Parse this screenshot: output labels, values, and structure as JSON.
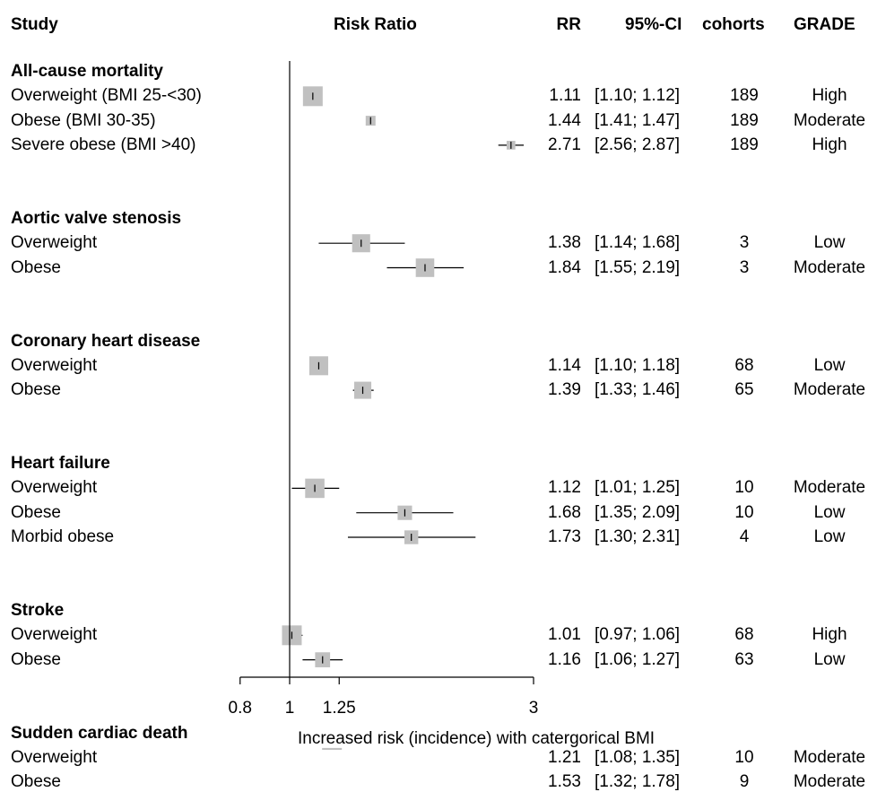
{
  "headers": {
    "study": "Study",
    "plot": "Risk Ratio",
    "rr": "RR",
    "ci": "95%-CI",
    "cohorts": "cohorts",
    "grade": "GRADE"
  },
  "chart_data": {
    "type": "forest",
    "xscale": "log",
    "xlim": [
      0.8,
      3
    ],
    "xticks": [
      "0.8",
      "1",
      "1.25",
      "3"
    ],
    "xlabel": "Increased risk (incidence) with catergorical BMI",
    "reference_line": 1,
    "groups": [
      {
        "name": "All-cause mortality",
        "rows": [
          {
            "label": "Overweight (BMI 25-<30)",
            "rr": 1.11,
            "lo": 1.1,
            "hi": 1.12,
            "rr_text": "1.11",
            "ci_text": "[1.10; 1.12]",
            "cohorts": "189",
            "grade": "High",
            "weight": 1.0
          },
          {
            "label": "Obese (BMI 30-35)",
            "rr": 1.44,
            "lo": 1.41,
            "hi": 1.47,
            "rr_text": "1.44",
            "ci_text": "[1.41; 1.47]",
            "cohorts": "189",
            "grade": "Moderate",
            "weight": 0.15
          },
          {
            "label": "Severe obese (BMI >40)",
            "rr": 2.71,
            "lo": 2.56,
            "hi": 2.87,
            "rr_text": "2.71",
            "ci_text": "[2.56; 2.87]",
            "cohorts": "189",
            "grade": "High",
            "weight": 0.1
          }
        ]
      },
      {
        "name": "Aortic valve stenosis",
        "rows": [
          {
            "label": "Overweight",
            "rr": 1.38,
            "lo": 1.14,
            "hi": 1.68,
            "rr_text": "1.38",
            "ci_text": "[1.14; 1.68]",
            "cohorts": "3",
            "grade": "Low",
            "weight": 0.8
          },
          {
            "label": "Obese",
            "rr": 1.84,
            "lo": 1.55,
            "hi": 2.19,
            "rr_text": "1.84",
            "ci_text": "[1.55; 2.19]",
            "cohorts": "3",
            "grade": "Moderate",
            "weight": 0.85
          }
        ]
      },
      {
        "name": "Coronary heart disease",
        "rows": [
          {
            "label": "Overweight",
            "rr": 1.14,
            "lo": 1.1,
            "hi": 1.18,
            "rr_text": "1.14",
            "ci_text": "[1.10; 1.18]",
            "cohorts": "68",
            "grade": "Low",
            "weight": 0.9
          },
          {
            "label": "Obese",
            "rr": 1.39,
            "lo": 1.33,
            "hi": 1.46,
            "rr_text": "1.39",
            "ci_text": "[1.33; 1.46]",
            "cohorts": "65",
            "grade": "Moderate",
            "weight": 0.7
          }
        ]
      },
      {
        "name": "Heart failure",
        "rows": [
          {
            "label": "Overweight",
            "rr": 1.12,
            "lo": 1.01,
            "hi": 1.25,
            "rr_text": "1.12",
            "ci_text": "[1.01; 1.25]",
            "cohorts": "10",
            "grade": "Moderate",
            "weight": 0.95
          },
          {
            "label": "Obese",
            "rr": 1.68,
            "lo": 1.35,
            "hi": 2.09,
            "rr_text": "1.68",
            "ci_text": "[1.35; 2.09]",
            "cohorts": "10",
            "grade": "Low",
            "weight": 0.45
          },
          {
            "label": "Morbid obese",
            "rr": 1.73,
            "lo": 1.3,
            "hi": 2.31,
            "rr_text": "1.73",
            "ci_text": "[1.30; 2.31]",
            "cohorts": "4",
            "grade": "Low",
            "weight": 0.4
          }
        ]
      },
      {
        "name": "Stroke",
        "rows": [
          {
            "label": "Overweight",
            "rr": 1.01,
            "lo": 0.97,
            "hi": 1.06,
            "rr_text": "1.01",
            "ci_text": "[0.97; 1.06]",
            "cohorts": "68",
            "grade": "High",
            "weight": 1.0
          },
          {
            "label": "Obese",
            "rr": 1.16,
            "lo": 1.06,
            "hi": 1.27,
            "rr_text": "1.16",
            "ci_text": "[1.06; 1.27]",
            "cohorts": "63",
            "grade": "Low",
            "weight": 0.5
          }
        ]
      },
      {
        "name": "Sudden cardiac death",
        "rows": [
          {
            "label": "Overweight",
            "rr": 1.21,
            "lo": 1.08,
            "hi": 1.35,
            "rr_text": "1.21",
            "ci_text": "[1.08; 1.35]",
            "cohorts": "10",
            "grade": "Moderate",
            "weight": 1.0
          },
          {
            "label": "Obese",
            "rr": 1.53,
            "lo": 1.32,
            "hi": 1.78,
            "rr_text": "1.53",
            "ci_text": "[1.32; 1.78]",
            "cohorts": "9",
            "grade": "Moderate",
            "weight": 0.8
          }
        ]
      }
    ]
  },
  "colors": {
    "box": "#c0c0c0",
    "line": "#000000"
  }
}
